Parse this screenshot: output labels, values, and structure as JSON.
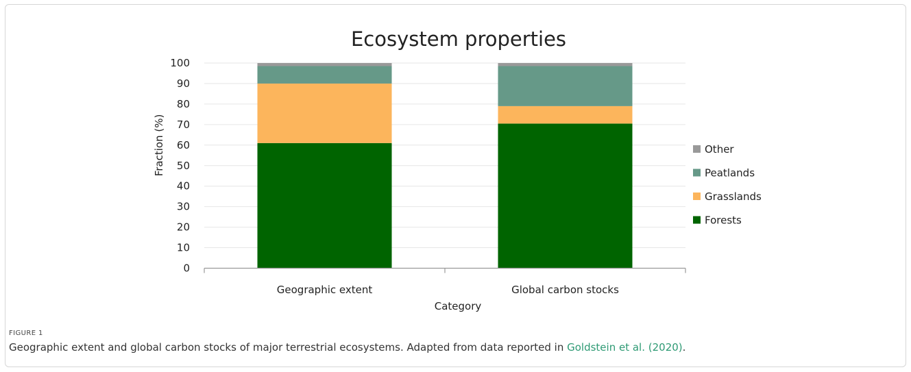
{
  "chart_data": {
    "type": "bar",
    "stacked": true,
    "title": "Ecosystem properties",
    "xlabel": "Category",
    "ylabel": "Fraction (%)",
    "ylim": [
      0,
      100
    ],
    "yticks": [
      0,
      10,
      20,
      30,
      40,
      50,
      60,
      70,
      80,
      90,
      100
    ],
    "grid": true,
    "legend_position": "right",
    "categories": [
      "Geographic extent",
      "Global carbon stocks"
    ],
    "series": [
      {
        "name": "Forests",
        "color": "#006400",
        "values": [
          61,
          70.5
        ]
      },
      {
        "name": "Grasslands",
        "color": "#fcb55c",
        "values": [
          29,
          8.5
        ]
      },
      {
        "name": "Peatlands",
        "color": "#669988",
        "values": [
          8.5,
          19.5
        ]
      },
      {
        "name": "Other",
        "color": "#999999",
        "values": [
          1.5,
          1.5
        ]
      }
    ]
  },
  "figure": {
    "label": "FIGURE 1",
    "caption_text": "Geographic extent and global carbon stocks of major terrestrial ecosystems. Adapted from data reported in ",
    "caption_link": "Goldstein et al. (2020)",
    "caption_end": "."
  }
}
